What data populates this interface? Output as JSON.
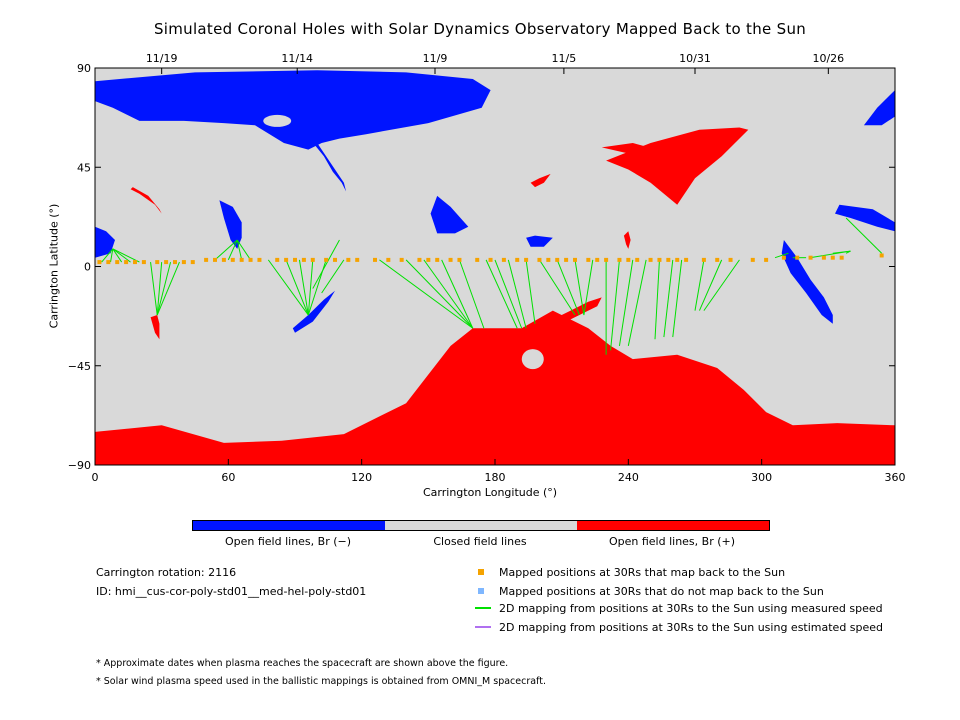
{
  "title": "Simulated Coronal Holes with Solar Dynamics Observatory Mapped Back to the Sun",
  "colors": {
    "open_negative": "#0014ff",
    "closed": "#d9d9d9",
    "open_positive": "#ff0000",
    "mapped": "#f5a300",
    "unmapped": "#7fb7ff",
    "measured": "#00e000",
    "estimated": "#b070f0"
  },
  "colorbar": {
    "labels": [
      "Open field lines, Br (−)",
      "Closed field lines",
      "Open field lines, Br (+)"
    ]
  },
  "info": {
    "rotation": "Carrington rotation: 2116",
    "id": "ID: hmi__cus-cor-poly-std01__med-hel-poly-std01"
  },
  "legend": {
    "items": [
      "Mapped positions at 30Rs that map back to the Sun",
      "Mapped positions at 30Rs that do not map back to the Sun",
      "2D mapping from positions at 30Rs to the Sun using measured speed",
      "2D mapping from positions at 30Rs to the Sun using estimated speed"
    ]
  },
  "notes": [
    "* Approximate dates when plasma reaches the spacecraft are shown above the figure.",
    "* Solar wind plasma speed used in the ballistic mappings is obtained from OMNI_M spacecraft."
  ],
  "chart_data": {
    "type": "map",
    "xlabel": "Carrington Longitude (°)",
    "ylabel": "Carrington Latitude (°)",
    "xlim": [
      0,
      360
    ],
    "ylim": [
      -90,
      90
    ],
    "xticks": [
      0,
      60,
      120,
      180,
      240,
      300,
      360
    ],
    "yticks": [
      90,
      45,
      0,
      -45,
      -90
    ],
    "ytick_labels": [
      "90",
      "45",
      "0",
      "−45",
      "−90"
    ],
    "top_dates": [
      {
        "label": "11/19",
        "lon": 30
      },
      {
        "label": "11/14",
        "lon": 91
      },
      {
        "label": "11/9",
        "lon": 153
      },
      {
        "label": "11/5",
        "lon": 211
      },
      {
        "label": "10/31",
        "lon": 270
      },
      {
        "label": "10/26",
        "lon": 330
      }
    ],
    "coronal_holes": [
      {
        "sign": "-",
        "points": [
          [
            0,
            84
          ],
          [
            45,
            88
          ],
          [
            100,
            89
          ],
          [
            140,
            88
          ],
          [
            170,
            85
          ],
          [
            178,
            80
          ],
          [
            174,
            72
          ],
          [
            150,
            65
          ],
          [
            122,
            60
          ],
          [
            110,
            58
          ],
          [
            102,
            56
          ],
          [
            96,
            53
          ],
          [
            85,
            56
          ],
          [
            72,
            64
          ],
          [
            58,
            65
          ],
          [
            40,
            66
          ],
          [
            20,
            66
          ],
          [
            8,
            72
          ],
          [
            0,
            75
          ]
        ]
      },
      {
        "sign": "-",
        "points": [
          [
            100,
            56
          ],
          [
            104,
            50
          ],
          [
            108,
            44
          ],
          [
            112,
            38
          ],
          [
            113,
            34
          ],
          [
            111,
            38
          ],
          [
            107,
            43
          ],
          [
            103,
            50
          ],
          [
            99,
            55
          ]
        ]
      },
      {
        "sign": "-",
        "points": [
          [
            346,
            64
          ],
          [
            352,
            72
          ],
          [
            360,
            80
          ],
          [
            360,
            68
          ],
          [
            354,
            64
          ]
        ]
      },
      {
        "sign": "-",
        "points": [
          [
            0,
            18
          ],
          [
            5,
            16
          ],
          [
            9,
            12
          ],
          [
            7,
            6
          ],
          [
            0,
            4
          ]
        ]
      },
      {
        "sign": "-",
        "points": [
          [
            56,
            30
          ],
          [
            62,
            27
          ],
          [
            66,
            20
          ],
          [
            66,
            13
          ],
          [
            64,
            8
          ],
          [
            61,
            12
          ],
          [
            58,
            22
          ]
        ]
      },
      {
        "sign": "-",
        "points": [
          [
            154,
            32
          ],
          [
            160,
            27
          ],
          [
            168,
            18
          ],
          [
            162,
            15
          ],
          [
            154,
            15
          ],
          [
            151,
            24
          ]
        ]
      },
      {
        "sign": "-",
        "points": [
          [
            194,
            13
          ],
          [
            198,
            14
          ],
          [
            206,
            13
          ],
          [
            202,
            9
          ],
          [
            196,
            9
          ]
        ]
      },
      {
        "sign": "-",
        "points": [
          [
            310,
            12
          ],
          [
            316,
            4
          ],
          [
            322,
            -6
          ],
          [
            328,
            -14
          ],
          [
            332,
            -22
          ],
          [
            332,
            -26
          ],
          [
            327,
            -22
          ],
          [
            320,
            -12
          ],
          [
            313,
            -3
          ],
          [
            309,
            6
          ]
        ]
      },
      {
        "sign": "-",
        "points": [
          [
            335,
            28
          ],
          [
            350,
            26
          ],
          [
            360,
            20
          ],
          [
            360,
            16
          ],
          [
            352,
            18
          ],
          [
            340,
            22
          ],
          [
            333,
            24
          ]
        ]
      },
      {
        "sign": "-",
        "points": [
          [
            90,
            -30
          ],
          [
            98,
            -25
          ],
          [
            105,
            -16
          ],
          [
            108,
            -11
          ],
          [
            103,
            -15
          ],
          [
            96,
            -22
          ],
          [
            89,
            -28
          ]
        ]
      },
      {
        "sign": "+",
        "points": [
          [
            0,
            -75
          ],
          [
            30,
            -72
          ],
          [
            58,
            -80
          ],
          [
            84,
            -79
          ],
          [
            112,
            -76
          ],
          [
            140,
            -62
          ],
          [
            160,
            -36
          ],
          [
            170,
            -28
          ],
          [
            192,
            -28
          ],
          [
            206,
            -20
          ],
          [
            222,
            -28
          ],
          [
            232,
            -36
          ],
          [
            242,
            -42
          ],
          [
            262,
            -40
          ],
          [
            280,
            -46
          ],
          [
            292,
            -56
          ],
          [
            302,
            -66
          ],
          [
            314,
            -72
          ],
          [
            334,
            -71
          ],
          [
            360,
            -72
          ],
          [
            360,
            -90
          ],
          [
            0,
            -90
          ]
        ]
      },
      {
        "sign": "+",
        "points": [
          [
            230,
            48
          ],
          [
            250,
            56
          ],
          [
            272,
            62
          ],
          [
            290,
            63
          ],
          [
            294,
            62
          ],
          [
            282,
            50
          ],
          [
            270,
            40
          ],
          [
            262,
            28
          ],
          [
            250,
            38
          ],
          [
            240,
            44
          ]
        ]
      },
      {
        "sign": "+",
        "points": [
          [
            228,
            54
          ],
          [
            241,
            51
          ],
          [
            253,
            53
          ],
          [
            242,
            56
          ]
        ]
      },
      {
        "sign": "+",
        "points": [
          [
            17,
            36
          ],
          [
            24,
            32
          ],
          [
            29,
            26
          ],
          [
            30,
            24
          ],
          [
            27,
            28
          ],
          [
            20,
            33
          ],
          [
            16,
            35
          ]
        ]
      },
      {
        "sign": "+",
        "points": [
          [
            196,
            38
          ],
          [
            200,
            40
          ],
          [
            205,
            42
          ],
          [
            202,
            38
          ],
          [
            198,
            36
          ]
        ]
      },
      {
        "sign": "+",
        "points": [
          [
            25,
            -23
          ],
          [
            28,
            -22
          ],
          [
            29,
            -26
          ],
          [
            29,
            -33
          ],
          [
            27,
            -30
          ]
        ]
      },
      {
        "sign": "+",
        "points": [
          [
            238,
            14
          ],
          [
            240,
            16
          ],
          [
            241,
            12
          ],
          [
            240,
            8
          ],
          [
            239,
            10
          ]
        ]
      },
      {
        "sign": "+",
        "points": [
          [
            196,
            -28
          ],
          [
            206,
            -24
          ],
          [
            214,
            -20
          ],
          [
            222,
            -16
          ],
          [
            228,
            -14
          ],
          [
            226,
            -18
          ],
          [
            218,
            -22
          ],
          [
            210,
            -26
          ]
        ]
      }
    ],
    "mapping_lines_measured": [
      [
        3,
        2,
        8,
        8
      ],
      [
        7,
        2,
        8,
        8
      ],
      [
        12,
        2,
        8,
        8
      ],
      [
        16,
        2,
        8,
        8
      ],
      [
        20,
        2,
        8,
        8
      ],
      [
        25,
        2,
        28,
        -22
      ],
      [
        30,
        2,
        28,
        -22
      ],
      [
        34,
        2,
        28,
        -22
      ],
      [
        38,
        2,
        28,
        -22
      ],
      [
        54,
        3,
        64,
        12
      ],
      [
        60,
        3,
        64,
        12
      ],
      [
        66,
        3,
        64,
        12
      ],
      [
        70,
        3,
        64,
        12
      ],
      [
        78,
        3,
        96,
        -22
      ],
      [
        86,
        3,
        96,
        -22
      ],
      [
        92,
        3,
        96,
        -22
      ],
      [
        98,
        3,
        96,
        -22
      ],
      [
        104,
        3,
        96,
        -22
      ],
      [
        110,
        12,
        98,
        -10
      ],
      [
        112,
        3,
        102,
        -12
      ],
      [
        128,
        3,
        170,
        -28
      ],
      [
        140,
        3,
        170,
        -28
      ],
      [
        148,
        3,
        170,
        -28
      ],
      [
        156,
        3,
        170,
        -28
      ],
      [
        164,
        3,
        175,
        -28
      ],
      [
        176,
        3,
        190,
        -28
      ],
      [
        180,
        3,
        192,
        -28
      ],
      [
        186,
        3,
        194,
        -28
      ],
      [
        194,
        3,
        198,
        -26
      ],
      [
        200,
        3,
        216,
        -22
      ],
      [
        208,
        3,
        218,
        -22
      ],
      [
        216,
        3,
        220,
        -22
      ],
      [
        224,
        3,
        220,
        -22
      ],
      [
        230,
        3,
        230,
        -40
      ],
      [
        236,
        3,
        232,
        -38
      ],
      [
        242,
        3,
        236,
        -36
      ],
      [
        248,
        3,
        240,
        -36
      ],
      [
        254,
        3,
        252,
        -33
      ],
      [
        260,
        3,
        256,
        -32
      ],
      [
        264,
        3,
        260,
        -32
      ],
      [
        274,
        3,
        270,
        -20
      ],
      [
        282,
        3,
        272,
        -20
      ],
      [
        290,
        3,
        274,
        -20
      ],
      [
        306,
        4,
        312,
        6
      ],
      [
        314,
        4,
        320,
        4
      ],
      [
        322,
        4,
        340,
        7
      ],
      [
        332,
        6,
        340,
        7
      ],
      [
        338,
        6,
        340,
        7
      ],
      [
        354,
        6,
        338,
        22
      ]
    ],
    "mapping_lines_estimated": [],
    "mapped_positions": [
      [
        2,
        2
      ],
      [
        6,
        2
      ],
      [
        10,
        2
      ],
      [
        14,
        2
      ],
      [
        18,
        2
      ],
      [
        22,
        2
      ],
      [
        28,
        2
      ],
      [
        32,
        2
      ],
      [
        36,
        2
      ],
      [
        40,
        2
      ],
      [
        44,
        2
      ],
      [
        50,
        3
      ],
      [
        54,
        3
      ],
      [
        58,
        3
      ],
      [
        62,
        3
      ],
      [
        66,
        3
      ],
      [
        70,
        3
      ],
      [
        74,
        3
      ],
      [
        82,
        3
      ],
      [
        86,
        3
      ],
      [
        90,
        3
      ],
      [
        94,
        3
      ],
      [
        98,
        3
      ],
      [
        104,
        3
      ],
      [
        108,
        3
      ],
      [
        114,
        3
      ],
      [
        118,
        3
      ],
      [
        126,
        3
      ],
      [
        132,
        3
      ],
      [
        138,
        3
      ],
      [
        146,
        3
      ],
      [
        150,
        3
      ],
      [
        154,
        3
      ],
      [
        160,
        3
      ],
      [
        164,
        3
      ],
      [
        172,
        3
      ],
      [
        178,
        3
      ],
      [
        184,
        3
      ],
      [
        190,
        3
      ],
      [
        194,
        3
      ],
      [
        200,
        3
      ],
      [
        204,
        3
      ],
      [
        208,
        3
      ],
      [
        212,
        3
      ],
      [
        216,
        3
      ],
      [
        222,
        3
      ],
      [
        226,
        3
      ],
      [
        230,
        3
      ],
      [
        236,
        3
      ],
      [
        240,
        3
      ],
      [
        244,
        3
      ],
      [
        250,
        3
      ],
      [
        254,
        3
      ],
      [
        258,
        3
      ],
      [
        262,
        3
      ],
      [
        266,
        3
      ],
      [
        274,
        3
      ],
      [
        280,
        3
      ],
      [
        286,
        3
      ],
      [
        296,
        3
      ],
      [
        302,
        3
      ],
      [
        310,
        4
      ],
      [
        316,
        4
      ],
      [
        322,
        4
      ],
      [
        328,
        4
      ],
      [
        332,
        4
      ],
      [
        336,
        4
      ],
      [
        354,
        5
      ]
    ],
    "unmapped_positions": []
  }
}
